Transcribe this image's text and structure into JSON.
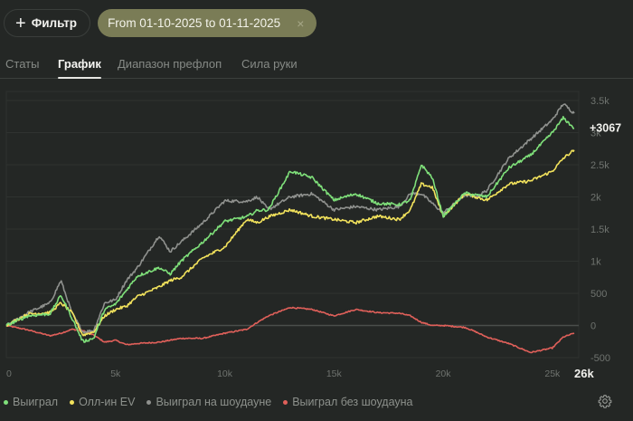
{
  "toolbar": {
    "filter_label": "Фильтр",
    "date_chip_label": "From 01-10-2025 to 01-11-2025",
    "close_symbol": "×"
  },
  "tabs": [
    {
      "label": "Статы",
      "active": false
    },
    {
      "label": "График",
      "active": true
    },
    {
      "label": "Диапазон префлоп",
      "active": false
    },
    {
      "label": "Сила руки",
      "active": false
    }
  ],
  "chart_data": {
    "type": "line",
    "title": "",
    "xlabel": "",
    "ylabel": "",
    "x_ticks": [
      "0",
      "5k",
      "10k",
      "15k",
      "20k",
      "25k"
    ],
    "x_current_label": "26k",
    "x_range": [
      0,
      26000
    ],
    "y_ticks": [
      "3.5k",
      "3k",
      "2.5k",
      "2k",
      "1.5k",
      "1k",
      "500",
      "0",
      "-500"
    ],
    "y_range": [
      -500,
      3500
    ],
    "grid": true,
    "current_value_label": "+3067",
    "legend_position": "bottom-left",
    "x": [
      0,
      1000,
      2000,
      2500,
      3000,
      3500,
      4000,
      4500,
      5000,
      5500,
      6000,
      7000,
      7500,
      8000,
      9000,
      10000,
      11000,
      11500,
      12000,
      13000,
      14000,
      15000,
      16000,
      17000,
      18000,
      18500,
      19000,
      19500,
      20000,
      21000,
      21500,
      22000,
      23000,
      24000,
      25000,
      25500,
      26000
    ],
    "series": [
      {
        "name": "Выиграл",
        "color": "#7fe07a",
        "values": [
          0,
          150,
          180,
          470,
          120,
          -250,
          -200,
          250,
          330,
          550,
          770,
          900,
          800,
          1000,
          1300,
          1620,
          1690,
          1790,
          1800,
          2400,
          2300,
          1950,
          2050,
          1900,
          1880,
          1950,
          2500,
          2300,
          1700,
          2060,
          2030,
          2000,
          2450,
          2650,
          3000,
          3230,
          3067
        ]
      },
      {
        "name": "Олл-ин EV",
        "color": "#f2e25c",
        "values": [
          0,
          180,
          200,
          350,
          200,
          -150,
          -100,
          150,
          250,
          300,
          450,
          600,
          700,
          750,
          1050,
          1220,
          1650,
          1600,
          1690,
          1800,
          1700,
          1650,
          1600,
          1700,
          1650,
          1800,
          2200,
          2150,
          1700,
          2050,
          2000,
          1950,
          2200,
          2250,
          2400,
          2600,
          2730
        ]
      },
      {
        "name": "Выиграл на шоудауне",
        "color": "#8f918e",
        "values": [
          0,
          200,
          350,
          700,
          200,
          -100,
          -80,
          350,
          400,
          700,
          900,
          1400,
          1150,
          1300,
          1600,
          1940,
          1930,
          2000,
          1800,
          2000,
          2050,
          1800,
          1850,
          1800,
          1850,
          2050,
          2050,
          1900,
          1750,
          2030,
          2000,
          2100,
          2600,
          2900,
          3200,
          3450,
          3300
        ]
      },
      {
        "name": "Выиграл без шоудауна",
        "color": "#e0605a",
        "values": [
          0,
          -70,
          -160,
          -120,
          -60,
          -80,
          -150,
          -260,
          -230,
          -300,
          -280,
          -260,
          -230,
          -200,
          -200,
          -120,
          -60,
          50,
          150,
          280,
          250,
          150,
          250,
          200,
          190,
          150,
          50,
          0,
          0,
          -30,
          -100,
          -180,
          -280,
          -420,
          -350,
          -180,
          -120
        ]
      }
    ]
  },
  "legend": [
    {
      "label": "Выиграл",
      "color": "#7fe07a"
    },
    {
      "label": "Олл-ин EV",
      "color": "#f2e25c"
    },
    {
      "label": "Выиграл на шоудауне",
      "color": "#8f918e"
    },
    {
      "label": "Выиграл без шоудауна",
      "color": "#e0605a"
    }
  ],
  "icons": {
    "filter": "plus-icon",
    "chip_close": "close-icon",
    "settings": "gear-icon"
  }
}
